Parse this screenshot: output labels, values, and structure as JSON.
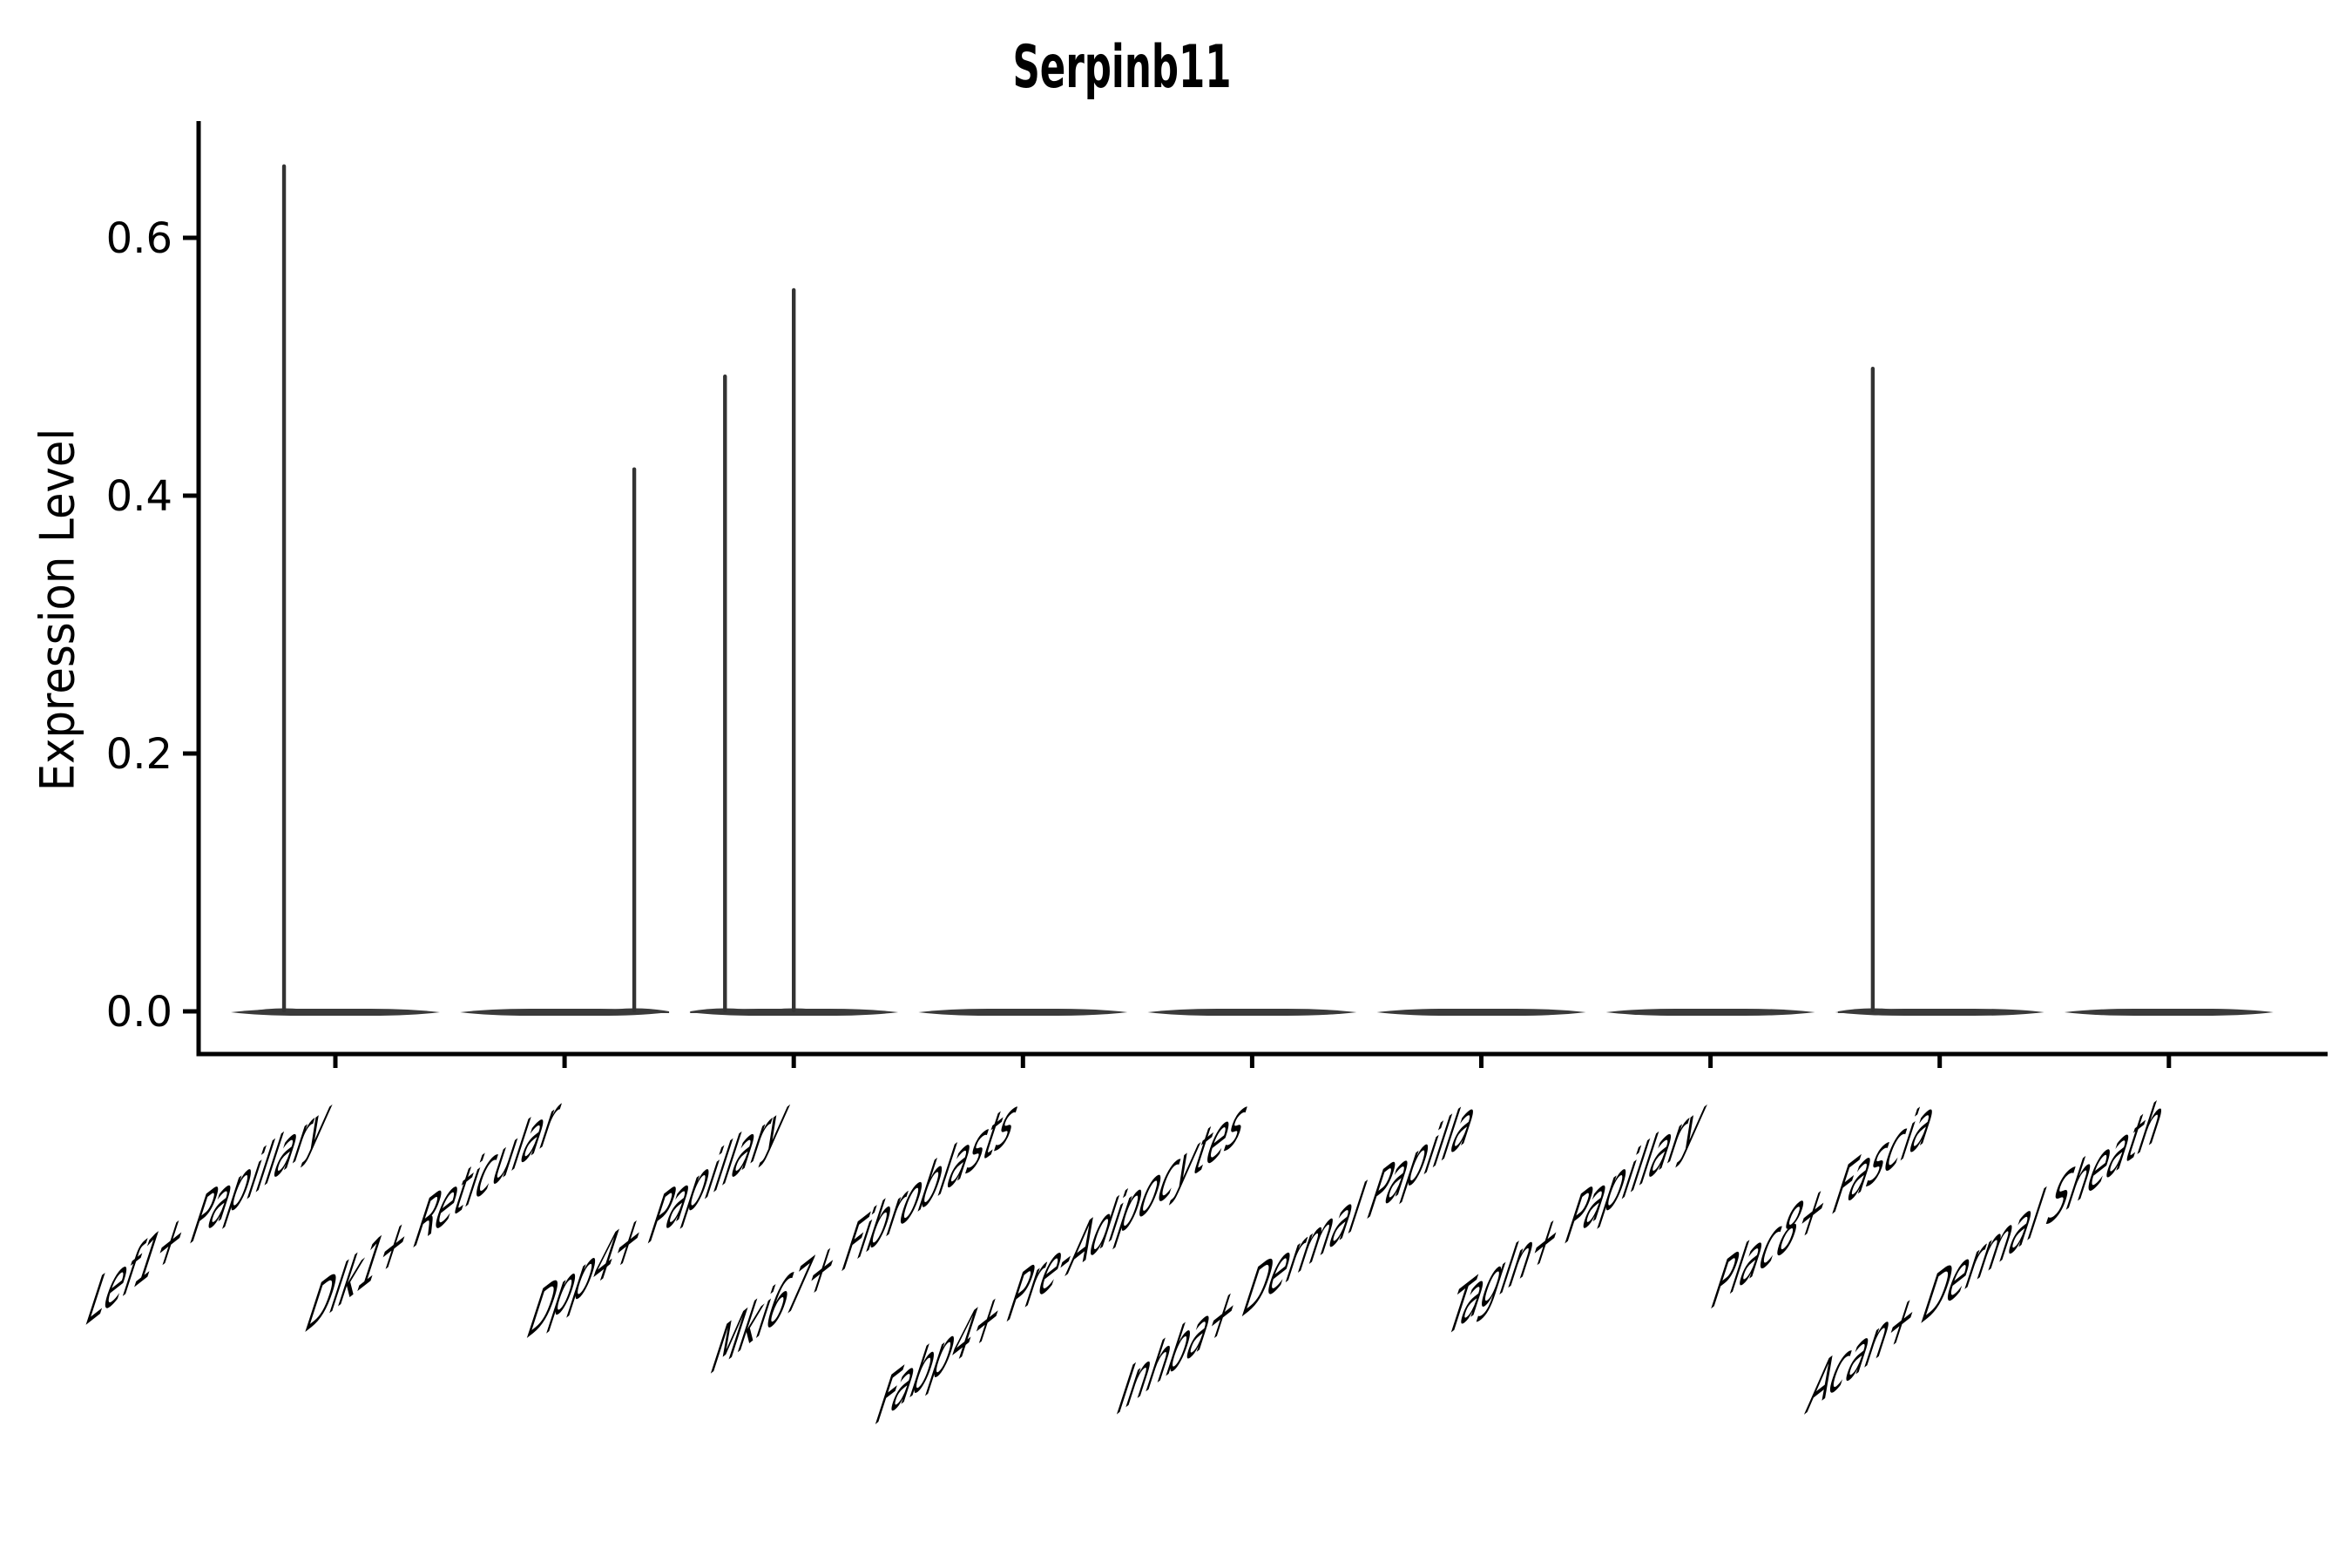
{
  "chart_data": {
    "type": "violin",
    "title": "Serpinb11",
    "ylabel": "Expression Level",
    "xlabel": "",
    "yticks": [
      0.0,
      0.2,
      0.4,
      0.6
    ],
    "ytick_labels": [
      "0.0",
      "0.2",
      "0.4",
      "0.6"
    ],
    "ylim": [
      -0.033,
      0.691
    ],
    "grid": false,
    "legend": false,
    "colors": {
      "violin": "#3a3a3a",
      "spike": "#333333",
      "axis": "#000000",
      "text": "#000000",
      "background": "#ffffff"
    },
    "categories": [
      {
        "label": "Lef1+ Papillary",
        "spikes": [
          {
            "value": 0.657,
            "offset": -0.224
          }
        ]
      },
      {
        "label": "Dlk1+ Reticular",
        "spikes": [
          {
            "value": 0.422,
            "offset": 0.304
          }
        ]
      },
      {
        "label": "Dpp4+ Papillary",
        "spikes": [
          {
            "value": 0.494,
            "offset": -0.3
          },
          {
            "value": 0.561,
            "offset": 0.0
          }
        ]
      },
      {
        "label": "Mki67+ Fibroblasts",
        "spikes": []
      },
      {
        "label": "Fabp4+ Pre-Adipocytes",
        "spikes": []
      },
      {
        "label": "Inhba+ Dermal Papilla",
        "spikes": []
      },
      {
        "label": "Tagln+ Papillary",
        "spikes": []
      },
      {
        "label": "Plac8+ Fascia",
        "spikes": [
          {
            "value": 0.5,
            "offset": -0.292
          }
        ]
      },
      {
        "label": "Acan+ Dermal Sheath",
        "spikes": []
      }
    ]
  }
}
